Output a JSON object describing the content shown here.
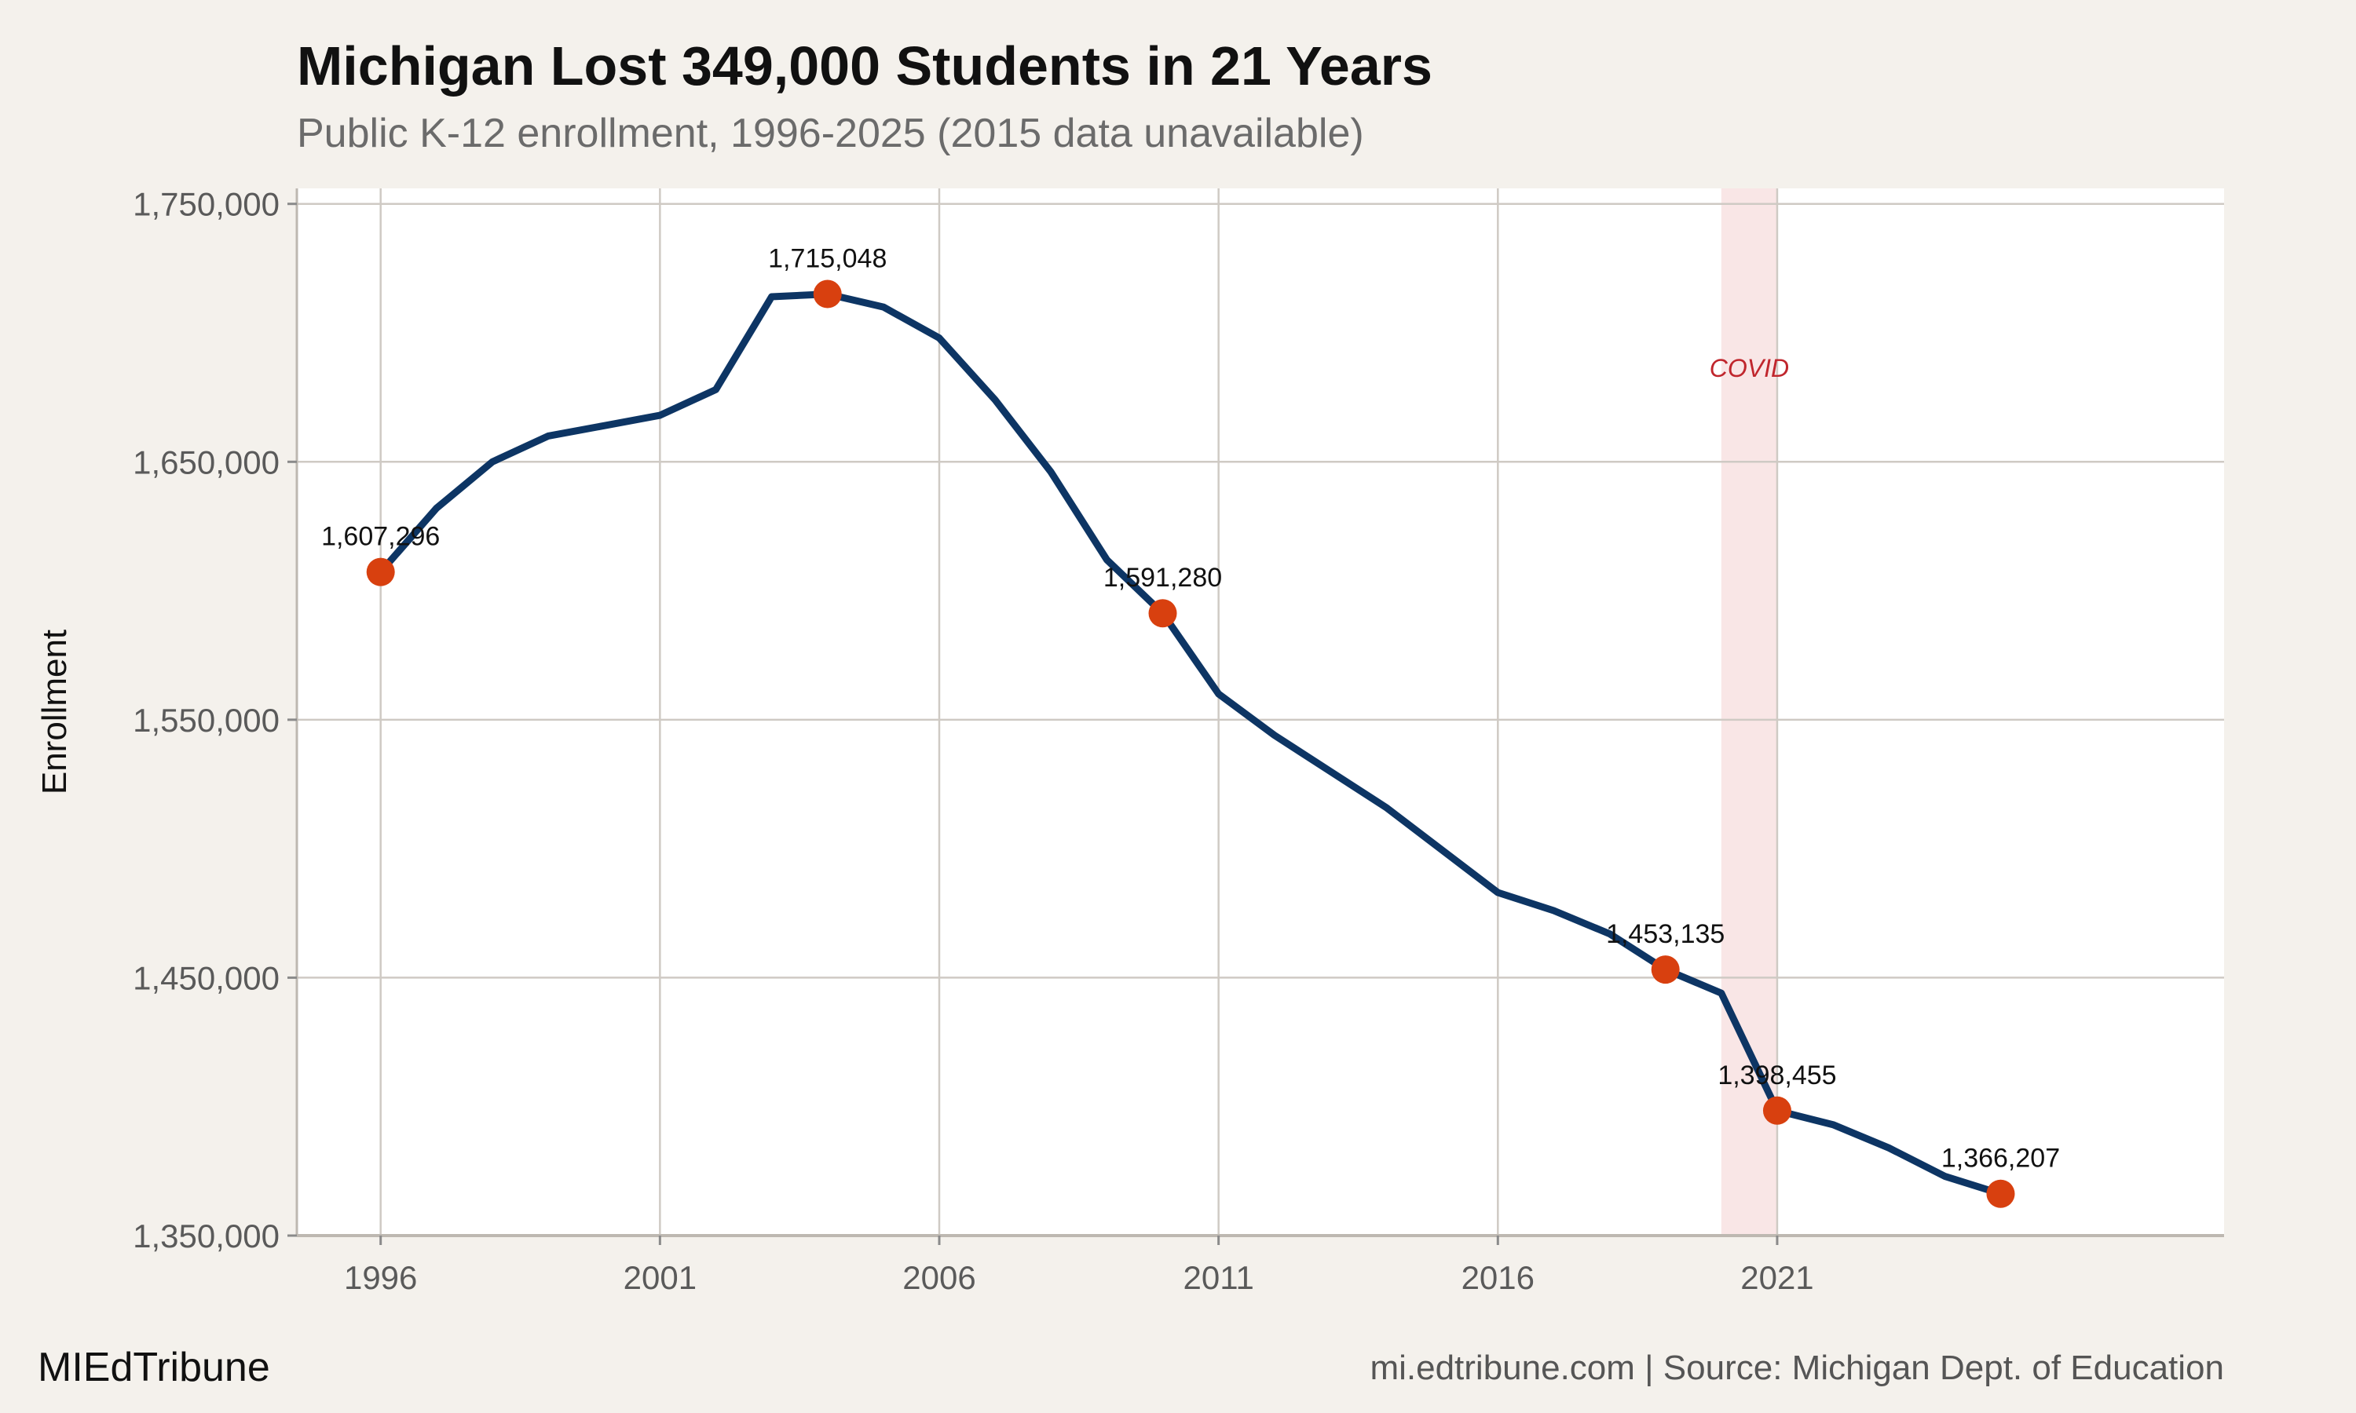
{
  "header": {
    "title": "Michigan Lost 349,000 Students in 21 Years",
    "subtitle": "Public K-12 enrollment, 1996-2025 (2015 data unavailable)"
  },
  "footer": {
    "brand": "MIEdTribune",
    "caption": "mi.edtribune.com | Source: Michigan Dept. of Education"
  },
  "colors": {
    "background": "#f4f1ec",
    "panel": "#ffffff",
    "line": "#0d3564",
    "highlight": "#d8400f",
    "covid_band": "#f9e6e6",
    "covid_text": "#c0262d",
    "grid": "#cfcac4"
  },
  "chart_data": {
    "type": "line",
    "title": "Michigan Lost 349,000 Students in 21 Years",
    "subtitle": "Public K-12 enrollment, 1996-2025 (2015 data unavailable)",
    "xlabel": "",
    "ylabel": "Enrollment",
    "xlim": [
      1994.5,
      2029
    ],
    "ylim": [
      1350000,
      1756000
    ],
    "x_ticks": [
      1996,
      2001,
      2006,
      2011,
      2016,
      2021
    ],
    "x_tick_labels": [
      "1996",
      "2001",
      "2006",
      "2011",
      "2016",
      "2021"
    ],
    "y_ticks": [
      1350000,
      1450000,
      1550000,
      1650000,
      1750000
    ],
    "y_tick_labels": [
      "1,350,000",
      "1,450,000",
      "1,550,000",
      "1,650,000",
      "1,750,000"
    ],
    "grid": true,
    "series": [
      {
        "x": [
          1996,
          1997,
          1998,
          1999,
          2000,
          2001,
          2002,
          2003,
          2004,
          2005,
          2006,
          2007,
          2008,
          2009,
          2010,
          2011,
          2012,
          2013,
          2014,
          2016,
          2017,
          2018,
          2019,
          2020,
          2021,
          2022,
          2023,
          2024,
          2025
        ],
        "y": [
          1607296,
          1632000,
          1650000,
          1660000,
          1664000,
          1668000,
          1678000,
          1714000,
          1715048,
          1710000,
          1698000,
          1674000,
          1646000,
          1612000,
          1591280,
          1560000,
          1544000,
          1530000,
          1516000,
          1483000,
          1476000,
          1467000,
          1453135,
          1444000,
          1398455,
          1393000,
          1384000,
          1373000,
          1366207
        ]
      }
    ],
    "highlighted_points": [
      {
        "x": 1996,
        "y": 1607296,
        "label": "1,607,296"
      },
      {
        "x": 2004,
        "y": 1715048,
        "label": "1,715,048"
      },
      {
        "x": 2010,
        "y": 1591280,
        "label": "1,591,280"
      },
      {
        "x": 2019,
        "y": 1453135,
        "label": "1,453,135"
      },
      {
        "x": 2021,
        "y": 1398455,
        "label": "1,398,455"
      },
      {
        "x": 2025,
        "y": 1366207,
        "label": "1,366,207"
      }
    ],
    "annotations": [
      {
        "type": "band",
        "x_start": 2020,
        "x_end": 2021,
        "label": "COVID"
      }
    ]
  }
}
